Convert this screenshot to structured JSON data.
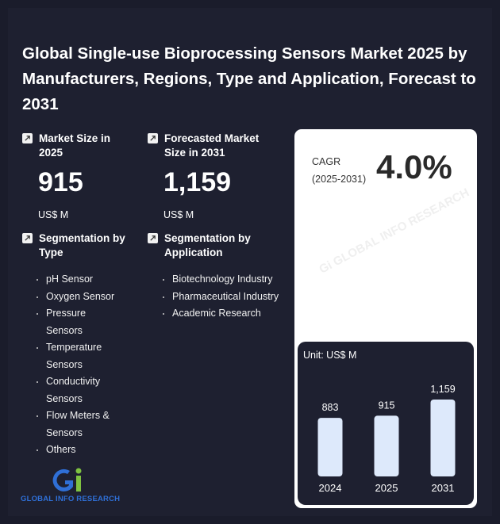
{
  "title": "Global Single-use Bioprocessing Sensors Market 2025 by Manufacturers, Regions, Type and Application, Forecast to 2031",
  "market_size": {
    "label": "Market Size in 2025",
    "value": "915",
    "unit": "US$ M"
  },
  "forecast": {
    "label": "Forecasted Market Size in 2031",
    "value": "1,159",
    "unit": "US$ M"
  },
  "segmentation_type": {
    "label": "Segmentation by Type",
    "items": [
      "pH Sensor",
      "Oxygen Sensor",
      "Pressure Sensors",
      "Temperature Sensors",
      "Conductivity Sensors",
      "Flow Meters & Sensors",
      "Others"
    ]
  },
  "segmentation_application": {
    "label": "Segmentation by Application",
    "items": [
      "Biotechnology Industry",
      "Pharmaceutical Industry",
      "Academic Research"
    ]
  },
  "cagr": {
    "label_line1": "CAGR",
    "label_line2": "(2025-2031)",
    "value": "4.0%"
  },
  "logo": {
    "text": "GLOBAL INFO RESEARCH"
  },
  "colors": {
    "background": "#1e2030",
    "bar": "#dde9fb",
    "card": "#ffffff",
    "logo_blue": "#2f6fd6",
    "logo_green": "#7fc241"
  },
  "chart_data": {
    "type": "bar",
    "unit_label": "Unit: US$ M",
    "categories": [
      "2024",
      "2025",
      "2031"
    ],
    "values": [
      883,
      915,
      1159
    ],
    "value_labels": [
      "883",
      "915",
      "1,159"
    ]
  }
}
